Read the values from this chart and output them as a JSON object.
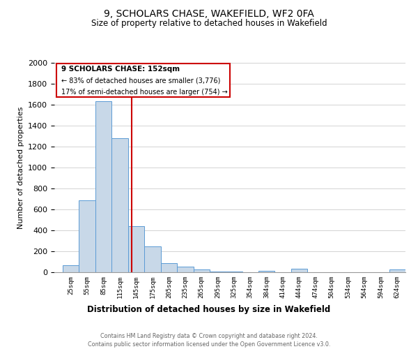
{
  "title": "9, SCHOLARS CHASE, WAKEFIELD, WF2 0FA",
  "subtitle": "Size of property relative to detached houses in Wakefield",
  "xlabel": "Distribution of detached houses by size in Wakefield",
  "ylabel": "Number of detached properties",
  "bar_color": "#c8d8e8",
  "bar_edge_color": "#5b9bd5",
  "bins": [
    25,
    55,
    85,
    115,
    145,
    175,
    205,
    235,
    265,
    295,
    325,
    354,
    384,
    414,
    444,
    474,
    504,
    534,
    564,
    594,
    624
  ],
  "values": [
    65,
    690,
    1635,
    1280,
    440,
    250,
    90,
    55,
    30,
    5,
    5,
    0,
    15,
    0,
    35,
    0,
    0,
    0,
    0,
    0,
    25
  ],
  "vline_x": 152,
  "vline_color": "#cc0000",
  "ylim": [
    0,
    2000
  ],
  "yticks": [
    0,
    200,
    400,
    600,
    800,
    1000,
    1200,
    1400,
    1600,
    1800,
    2000
  ],
  "annotation_title": "9 SCHOLARS CHASE: 152sqm",
  "annotation_line1": "← 83% of detached houses are smaller (3,776)",
  "annotation_line2": "17% of semi-detached houses are larger (754) →",
  "annotation_box_color": "#ffffff",
  "annotation_box_edge": "#cc0000",
  "footer_line1": "Contains HM Land Registry data © Crown copyright and database right 2024.",
  "footer_line2": "Contains public sector information licensed under the Open Government Licence v3.0.",
  "grid_color": "#cccccc",
  "background_color": "#ffffff"
}
